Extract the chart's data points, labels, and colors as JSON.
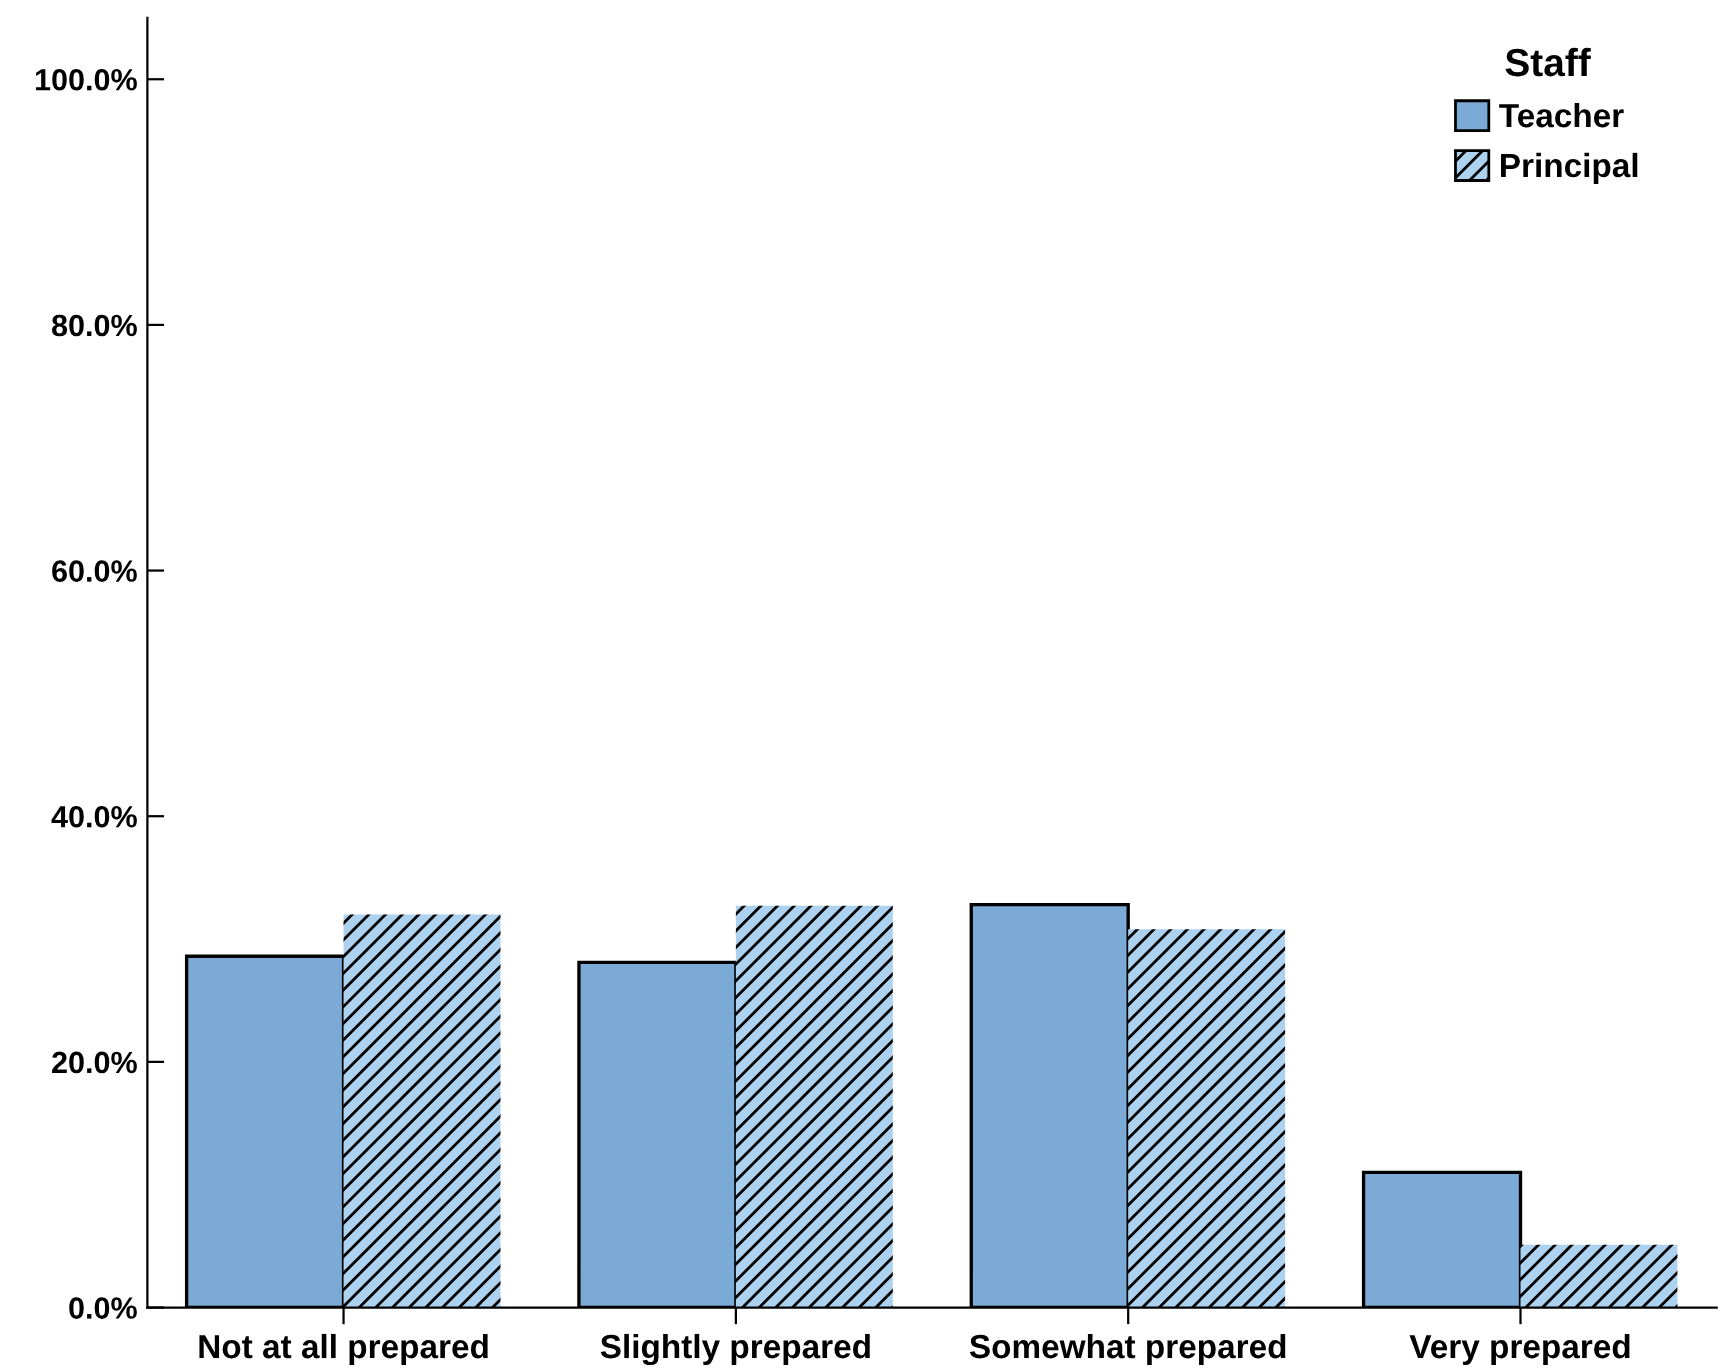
{
  "chart_data": {
    "type": "bar",
    "categories": [
      "Not at all prepared",
      "Slightly prepared",
      "Somewhat prepared",
      "Very prepared"
    ],
    "series": [
      {
        "name": "Teacher",
        "color": "#7baad6",
        "values": [
          28.6,
          28.1,
          32.8,
          11.0
        ]
      },
      {
        "name": "Principal",
        "color": "#acd2f0",
        "values": [
          32.0,
          32.7,
          30.8,
          5.1
        ]
      }
    ],
    "legend_title": "Staff",
    "legend": "top right",
    "grid": false,
    "ylim": [
      0,
      105
    ],
    "yticks": [
      {
        "value": 0,
        "label": "0.0%"
      },
      {
        "value": 20,
        "label": "20.0%"
      },
      {
        "value": 40,
        "label": "40.0%"
      },
      {
        "value": 60,
        "label": "60.0%"
      },
      {
        "value": 80,
        "label": "80.0%"
      },
      {
        "value": 100,
        "label": "100.0%"
      }
    ]
  }
}
